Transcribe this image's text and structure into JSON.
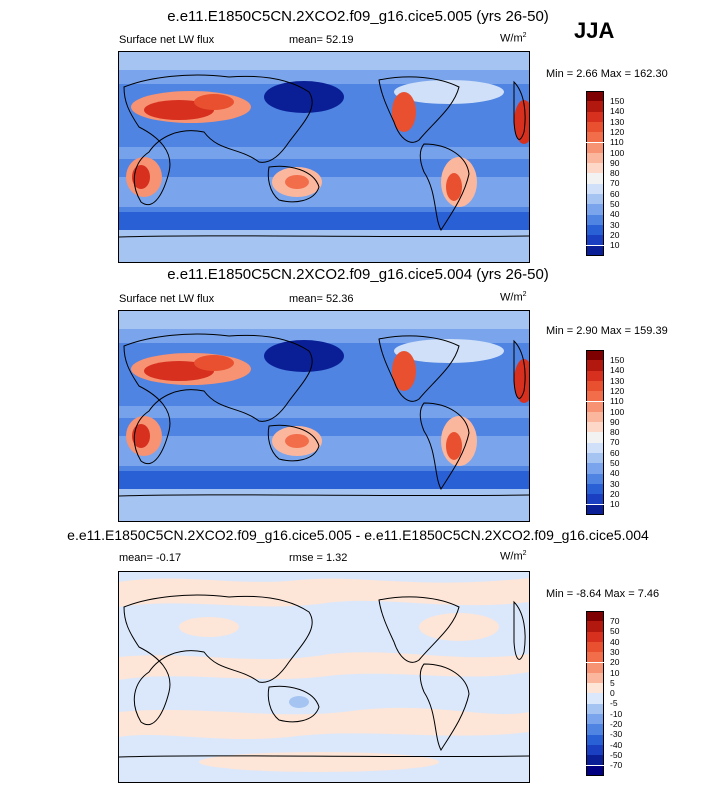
{
  "season": "JJA",
  "panels": [
    {
      "title": "e.e11.E1850C5CN.2XCO2.f09_g16.cice5.005 (yrs 26-50)",
      "left_label": "Surface net LW flux",
      "center_label": "mean=  52.19",
      "units_base": "W/m",
      "units_exp": "2",
      "minmax": "Min =   2.66 Max = 162.30",
      "type": "field"
    },
    {
      "title": "e.e11.E1850C5CN.2XCO2.f09_g16.cice5.004 (yrs 26-50)",
      "left_label": "Surface net LW flux",
      "center_label": "mean=  52.36",
      "units_base": "W/m",
      "units_exp": "2",
      "minmax": "Min =   2.90 Max = 159.39",
      "type": "field"
    },
    {
      "title": "e.e11.E1850C5CN.2XCO2.f09_g16.cice5.005 - e.e11.E1850C5CN.2XCO2.f09_g16.cice5.004",
      "left_label": "mean=  -0.17",
      "center_label": "rmse =   1.32",
      "units_base": "W/m",
      "units_exp": "2",
      "minmax": "Min =  -8.64 Max =   7.46",
      "type": "diff"
    }
  ],
  "colorbars": {
    "field": {
      "labels": [
        "150",
        "140",
        "130",
        "120",
        "110",
        "100",
        "90",
        "80",
        "70",
        "60",
        "50",
        "40",
        "30",
        "20",
        "10"
      ],
      "colors": [
        "#7f0000",
        "#b2180e",
        "#d7301f",
        "#e8502f",
        "#f26e4b",
        "#f79273",
        "#fbb69e",
        "#fdd8c8",
        "#f2f2f2",
        "#cfe0f8",
        "#a6c4f2",
        "#7aa5ec",
        "#4f84e2",
        "#2a60d6",
        "#1a3fc0",
        "#0a1f96"
      ]
    },
    "diff": {
      "labels": [
        "70",
        "50",
        "40",
        "30",
        "20",
        "10",
        "5",
        "0",
        "-5",
        "-10",
        "-20",
        "-30",
        "-40",
        "-50",
        "-70"
      ],
      "colors": [
        "#7f0000",
        "#b2180e",
        "#d7301f",
        "#e8502f",
        "#f26e4b",
        "#f79273",
        "#fbb69e",
        "#fde5d8",
        "#dbe8fb",
        "#a6c4f2",
        "#7aa5ec",
        "#4f84e2",
        "#2a60d6",
        "#1a3fc0",
        "#0a1f96",
        "#000080"
      ]
    }
  }
}
